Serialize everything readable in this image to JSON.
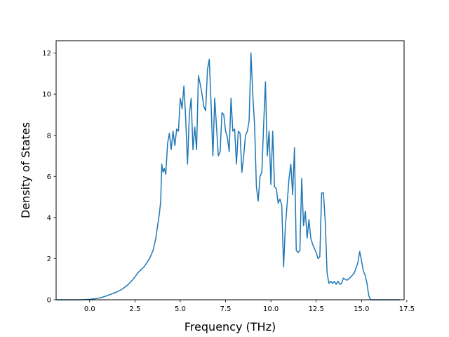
{
  "chart_data": {
    "type": "line",
    "title": "",
    "xlabel": "Frequency (THz)",
    "ylabel": "Density of States",
    "xlim": [
      -1.85,
      17.35
    ],
    "ylim": [
      0,
      12.6
    ],
    "grid": false,
    "legend": "none",
    "x_ticks": [
      0.0,
      2.5,
      5.0,
      7.5,
      10.0,
      12.5,
      15.0,
      17.5
    ],
    "x_tick_labels": [
      "0.0",
      "2.5",
      "5.0",
      "7.5",
      "10.0",
      "12.5",
      "15.0",
      "17.5"
    ],
    "y_ticks": [
      0,
      2,
      4,
      6,
      8,
      10,
      12
    ],
    "y_tick_labels": [
      "0",
      "2",
      "4",
      "6",
      "8",
      "10",
      "12"
    ],
    "series": [
      {
        "color": "#1f77b4",
        "x": [
          -1.8,
          -0.5,
          0.0,
          0.3,
          0.6,
          0.9,
          1.2,
          1.5,
          1.8,
          2.1,
          2.4,
          2.7,
          3.0,
          3.3,
          3.5,
          3.65,
          3.75,
          3.85,
          3.92,
          3.98,
          4.05,
          4.12,
          4.2,
          4.3,
          4.4,
          4.5,
          4.6,
          4.7,
          4.8,
          4.9,
          5.0,
          5.1,
          5.2,
          5.3,
          5.4,
          5.5,
          5.6,
          5.7,
          5.8,
          5.9,
          6.0,
          6.1,
          6.2,
          6.3,
          6.4,
          6.5,
          6.6,
          6.7,
          6.8,
          6.9,
          7.0,
          7.1,
          7.2,
          7.3,
          7.4,
          7.5,
          7.6,
          7.7,
          7.8,
          7.9,
          8.0,
          8.1,
          8.2,
          8.3,
          8.4,
          8.5,
          8.6,
          8.7,
          8.8,
          8.9,
          9.0,
          9.1,
          9.2,
          9.3,
          9.4,
          9.5,
          9.6,
          9.7,
          9.8,
          9.9,
          10.0,
          10.1,
          10.2,
          10.3,
          10.4,
          10.5,
          10.6,
          10.7,
          10.8,
          10.9,
          11.0,
          11.1,
          11.2,
          11.3,
          11.4,
          11.5,
          11.6,
          11.7,
          11.8,
          11.9,
          12.0,
          12.1,
          12.2,
          12.3,
          12.4,
          12.5,
          12.6,
          12.7,
          12.8,
          12.9,
          13.0,
          13.1,
          13.2,
          13.3,
          13.4,
          13.5,
          13.6,
          13.7,
          13.8,
          13.9,
          14.0,
          14.2,
          14.4,
          14.6,
          14.8,
          14.9,
          15.0,
          15.1,
          15.2,
          15.3,
          15.4,
          15.5,
          15.6,
          16.0,
          16.5,
          17.1
        ],
        "y": [
          0,
          0,
          0.02,
          0.05,
          0.1,
          0.18,
          0.28,
          0.38,
          0.52,
          0.72,
          1.0,
          1.35,
          1.6,
          2.0,
          2.4,
          3.0,
          3.6,
          4.2,
          4.8,
          6.6,
          6.2,
          6.4,
          6.1,
          7.6,
          8.1,
          7.3,
          8.2,
          7.5,
          8.3,
          8.2,
          9.8,
          9.3,
          10.4,
          8.8,
          6.6,
          9.0,
          9.8,
          7.3,
          8.4,
          7.3,
          10.9,
          10.5,
          10.0,
          9.4,
          9.2,
          11.2,
          11.7,
          9.5,
          7.0,
          9.8,
          8.4,
          7.0,
          7.2,
          9.1,
          9.0,
          8.2,
          7.9,
          7.2,
          9.8,
          8.2,
          8.3,
          6.6,
          8.2,
          8.1,
          6.2,
          7.0,
          8.0,
          8.2,
          8.7,
          12.0,
          10.0,
          8.5,
          5.5,
          4.8,
          6.0,
          6.2,
          8.5,
          10.6,
          7.0,
          8.2,
          5.6,
          8.2,
          5.5,
          5.4,
          4.7,
          4.9,
          4.6,
          1.6,
          3.6,
          4.7,
          5.9,
          6.6,
          5.1,
          7.4,
          2.4,
          2.3,
          2.4,
          5.9,
          3.6,
          4.3,
          3.0,
          3.9,
          3.0,
          2.7,
          2.5,
          2.3,
          2.0,
          2.1,
          5.2,
          5.2,
          3.8,
          1.3,
          0.8,
          0.9,
          0.8,
          0.9,
          0.75,
          0.9,
          0.75,
          0.8,
          1.05,
          0.95,
          1.1,
          1.3,
          1.8,
          2.35,
          1.9,
          1.4,
          1.2,
          0.8,
          0.2,
          0,
          0,
          0,
          0,
          0
        ]
      }
    ]
  }
}
